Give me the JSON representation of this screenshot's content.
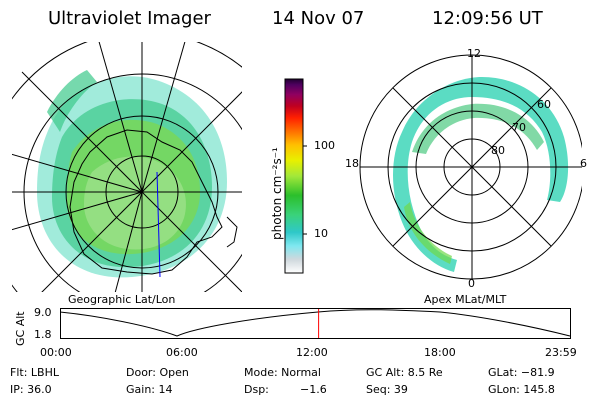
{
  "header": {
    "instrument": "Ultraviolet Imager",
    "date": "14 Nov 07",
    "time": "12:09:56 UT"
  },
  "panels": {
    "left_label": "Geographic Lat/Lon",
    "right_label": "Apex MLat/MLT",
    "mlt_labels": {
      "top": "12",
      "left": "18",
      "right": "6",
      "bottom": "0"
    },
    "mlat_labels": [
      "60",
      "70",
      "80"
    ]
  },
  "colorbar": {
    "label": "photon cm⁻²s⁻¹",
    "ticks": [
      "100",
      "10"
    ],
    "scale": "log",
    "colors": [
      "#ffffff",
      "#cfd8dd",
      "#7fe8f0",
      "#2fc8c8",
      "#3ad27a",
      "#2bbf2b",
      "#a3e83a",
      "#e8f000",
      "#ffc000",
      "#ff7000",
      "#ff2000",
      "#c00020",
      "#900060",
      "#500060",
      "#200030"
    ]
  },
  "timeline": {
    "axis_title": "GC Alt",
    "y_ticks": [
      "9.0",
      "1.8"
    ],
    "x_ticks": [
      "00:00",
      "06:00",
      "12:00",
      "18:00",
      "23:59"
    ],
    "current_time_hours": 12.17,
    "marker_color": "#ff0000"
  },
  "status": {
    "row1": {
      "filter": "Flt: LBHL",
      "door": "Door: Open",
      "mode": "Mode: Normal",
      "gc_alt": "GC Alt: 8.5 Re",
      "glat": "GLat: −81.9"
    },
    "row2": {
      "ip": "IP: 36.0",
      "gain": "Gain: 14",
      "dsp_label": "Dsp:",
      "dsp_value": "−1.6",
      "seq": "Seq: 39",
      "glon": "GLon: 145.8"
    }
  }
}
